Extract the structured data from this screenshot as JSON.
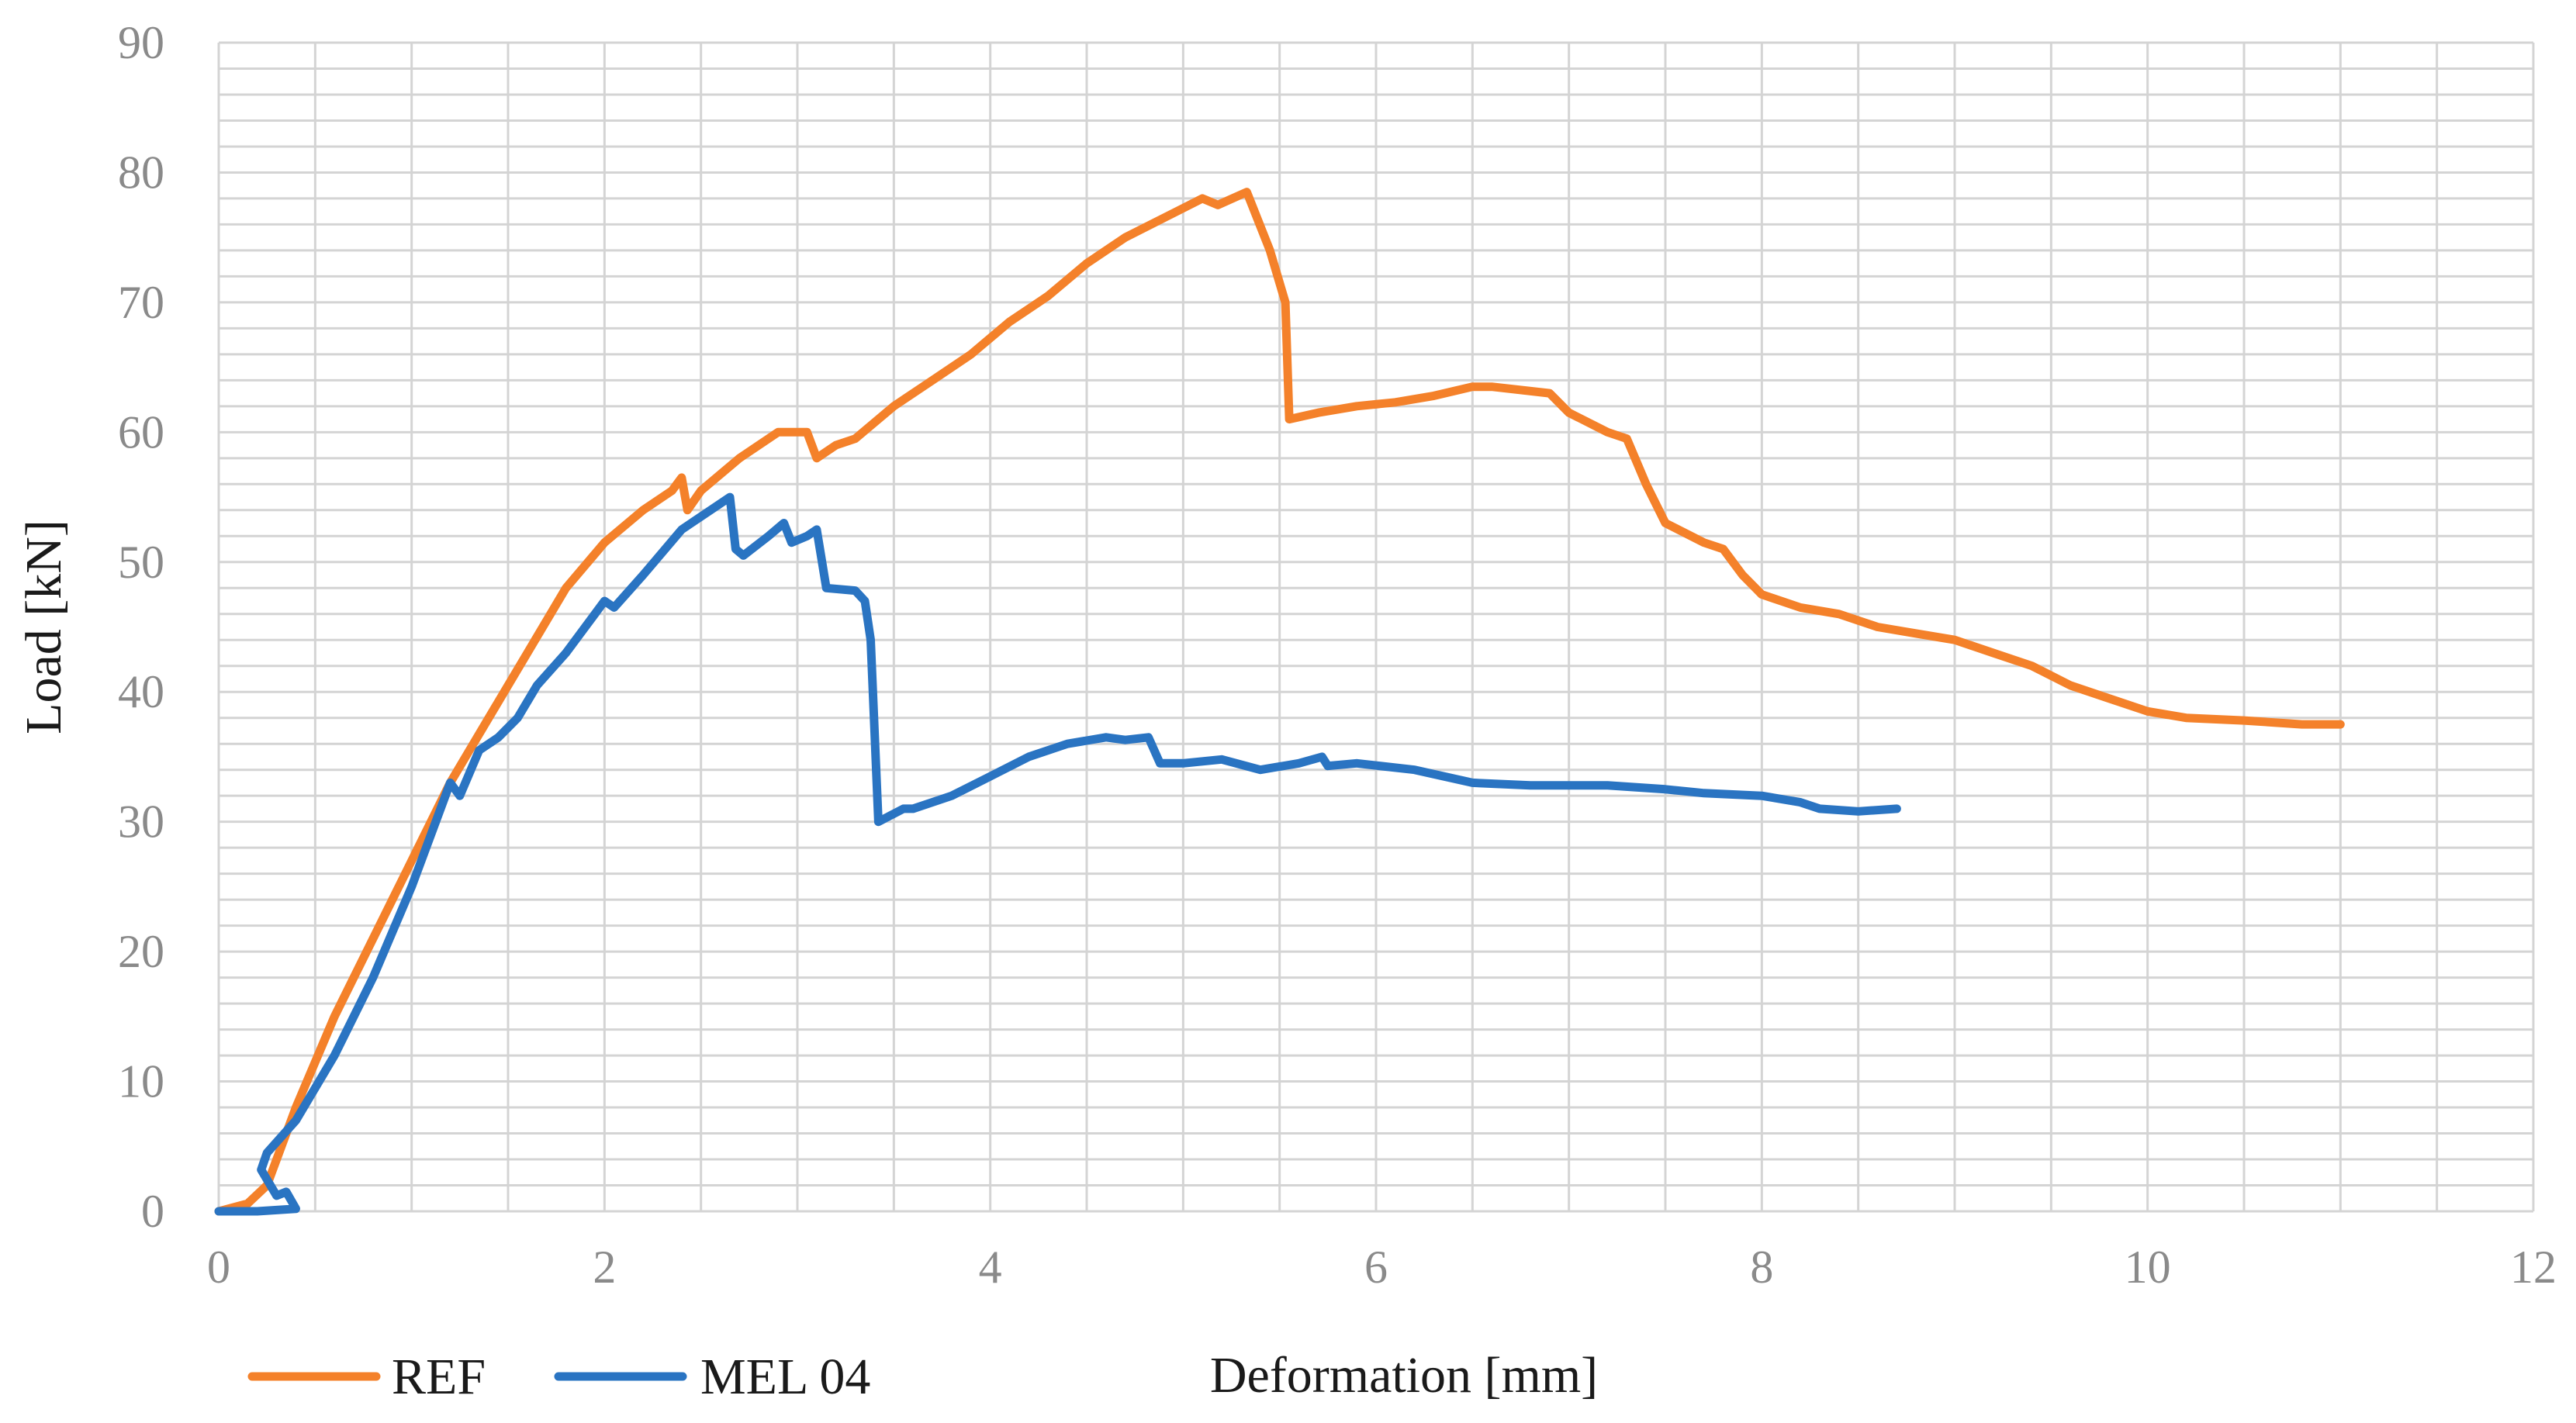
{
  "chart_data": {
    "type": "line",
    "title": "",
    "xlabel": "Deformation [mm]",
    "ylabel": "Load [kN]",
    "xlim": [
      0,
      12
    ],
    "ylim": [
      0,
      90
    ],
    "x_ticks": [
      "0",
      "2",
      "4",
      "6",
      "8",
      "10",
      "12"
    ],
    "y_ticks": [
      "0",
      "10",
      "20",
      "30",
      "40",
      "50",
      "60",
      "70",
      "80",
      "90"
    ],
    "grid": true,
    "legend_position": "bottom-left",
    "series": [
      {
        "name": "REF",
        "color": "#F4812A",
        "points": [
          [
            0,
            0
          ],
          [
            0.15,
            0.6
          ],
          [
            0.25,
            2
          ],
          [
            0.4,
            8
          ],
          [
            0.6,
            15
          ],
          [
            0.8,
            21
          ],
          [
            1.0,
            27
          ],
          [
            1.2,
            33
          ],
          [
            1.4,
            38
          ],
          [
            1.6,
            43
          ],
          [
            1.8,
            48
          ],
          [
            2.0,
            51.5
          ],
          [
            2.2,
            54
          ],
          [
            2.35,
            55.5
          ],
          [
            2.4,
            56.5
          ],
          [
            2.43,
            54
          ],
          [
            2.5,
            55.5
          ],
          [
            2.7,
            58
          ],
          [
            2.9,
            60
          ],
          [
            3.05,
            60
          ],
          [
            3.1,
            58
          ],
          [
            3.2,
            59
          ],
          [
            3.3,
            59.5
          ],
          [
            3.5,
            62
          ],
          [
            3.7,
            64
          ],
          [
            3.9,
            66
          ],
          [
            4.1,
            68.5
          ],
          [
            4.3,
            70.5
          ],
          [
            4.5,
            73
          ],
          [
            4.7,
            75
          ],
          [
            4.9,
            76.5
          ],
          [
            5.1,
            78
          ],
          [
            5.18,
            77.5
          ],
          [
            5.33,
            78.5
          ],
          [
            5.45,
            74
          ],
          [
            5.53,
            70
          ],
          [
            5.55,
            61
          ],
          [
            5.7,
            61.5
          ],
          [
            5.9,
            62
          ],
          [
            6.1,
            62.3
          ],
          [
            6.3,
            62.8
          ],
          [
            6.5,
            63.5
          ],
          [
            6.6,
            63.5
          ],
          [
            6.9,
            63
          ],
          [
            7.0,
            61.5
          ],
          [
            7.2,
            60
          ],
          [
            7.3,
            59.5
          ],
          [
            7.4,
            56
          ],
          [
            7.5,
            53
          ],
          [
            7.7,
            51.5
          ],
          [
            7.8,
            51
          ],
          [
            7.9,
            49
          ],
          [
            8.0,
            47.5
          ],
          [
            8.2,
            46.5
          ],
          [
            8.4,
            46
          ],
          [
            8.6,
            45
          ],
          [
            8.8,
            44.5
          ],
          [
            9.0,
            44
          ],
          [
            9.2,
            43
          ],
          [
            9.4,
            42
          ],
          [
            9.6,
            40.5
          ],
          [
            9.8,
            39.5
          ],
          [
            10.0,
            38.5
          ],
          [
            10.2,
            38
          ],
          [
            10.5,
            37.8
          ],
          [
            10.8,
            37.5
          ],
          [
            11.0,
            37.5
          ]
        ]
      },
      {
        "name": "MEL 04",
        "color": "#2A74C2",
        "points": [
          [
            0,
            0
          ],
          [
            0.2,
            0
          ],
          [
            0.4,
            0.2
          ],
          [
            0.35,
            1.5
          ],
          [
            0.3,
            1.2
          ],
          [
            0.22,
            3.2
          ],
          [
            0.25,
            4.5
          ],
          [
            0.4,
            7
          ],
          [
            0.6,
            12
          ],
          [
            0.8,
            18
          ],
          [
            1.0,
            25
          ],
          [
            1.15,
            31
          ],
          [
            1.2,
            33
          ],
          [
            1.25,
            32
          ],
          [
            1.35,
            35.5
          ],
          [
            1.45,
            36.5
          ],
          [
            1.55,
            38
          ],
          [
            1.65,
            40.5
          ],
          [
            1.8,
            43
          ],
          [
            1.95,
            46
          ],
          [
            2.0,
            47
          ],
          [
            2.05,
            46.5
          ],
          [
            2.2,
            49
          ],
          [
            2.4,
            52.5
          ],
          [
            2.55,
            54
          ],
          [
            2.65,
            55
          ],
          [
            2.68,
            51
          ],
          [
            2.72,
            50.5
          ],
          [
            2.85,
            52
          ],
          [
            2.93,
            53
          ],
          [
            2.97,
            51.5
          ],
          [
            3.05,
            52
          ],
          [
            3.1,
            52.5
          ],
          [
            3.15,
            48
          ],
          [
            3.3,
            47.8
          ],
          [
            3.35,
            47
          ],
          [
            3.38,
            44
          ],
          [
            3.42,
            30
          ],
          [
            3.55,
            31
          ],
          [
            3.6,
            31
          ],
          [
            3.8,
            32
          ],
          [
            4.0,
            33.5
          ],
          [
            4.2,
            35
          ],
          [
            4.4,
            36
          ],
          [
            4.6,
            36.5
          ],
          [
            4.7,
            36.3
          ],
          [
            4.82,
            36.5
          ],
          [
            4.88,
            34.5
          ],
          [
            5.0,
            34.5
          ],
          [
            5.2,
            34.8
          ],
          [
            5.4,
            34
          ],
          [
            5.6,
            34.5
          ],
          [
            5.72,
            35
          ],
          [
            5.75,
            34.3
          ],
          [
            5.9,
            34.5
          ],
          [
            6.2,
            34
          ],
          [
            6.5,
            33
          ],
          [
            6.8,
            32.8
          ],
          [
            7.2,
            32.8
          ],
          [
            7.5,
            32.5
          ],
          [
            7.7,
            32.2
          ],
          [
            8.0,
            32
          ],
          [
            8.2,
            31.5
          ],
          [
            8.3,
            31
          ],
          [
            8.5,
            30.8
          ],
          [
            8.7,
            31
          ]
        ]
      }
    ]
  }
}
